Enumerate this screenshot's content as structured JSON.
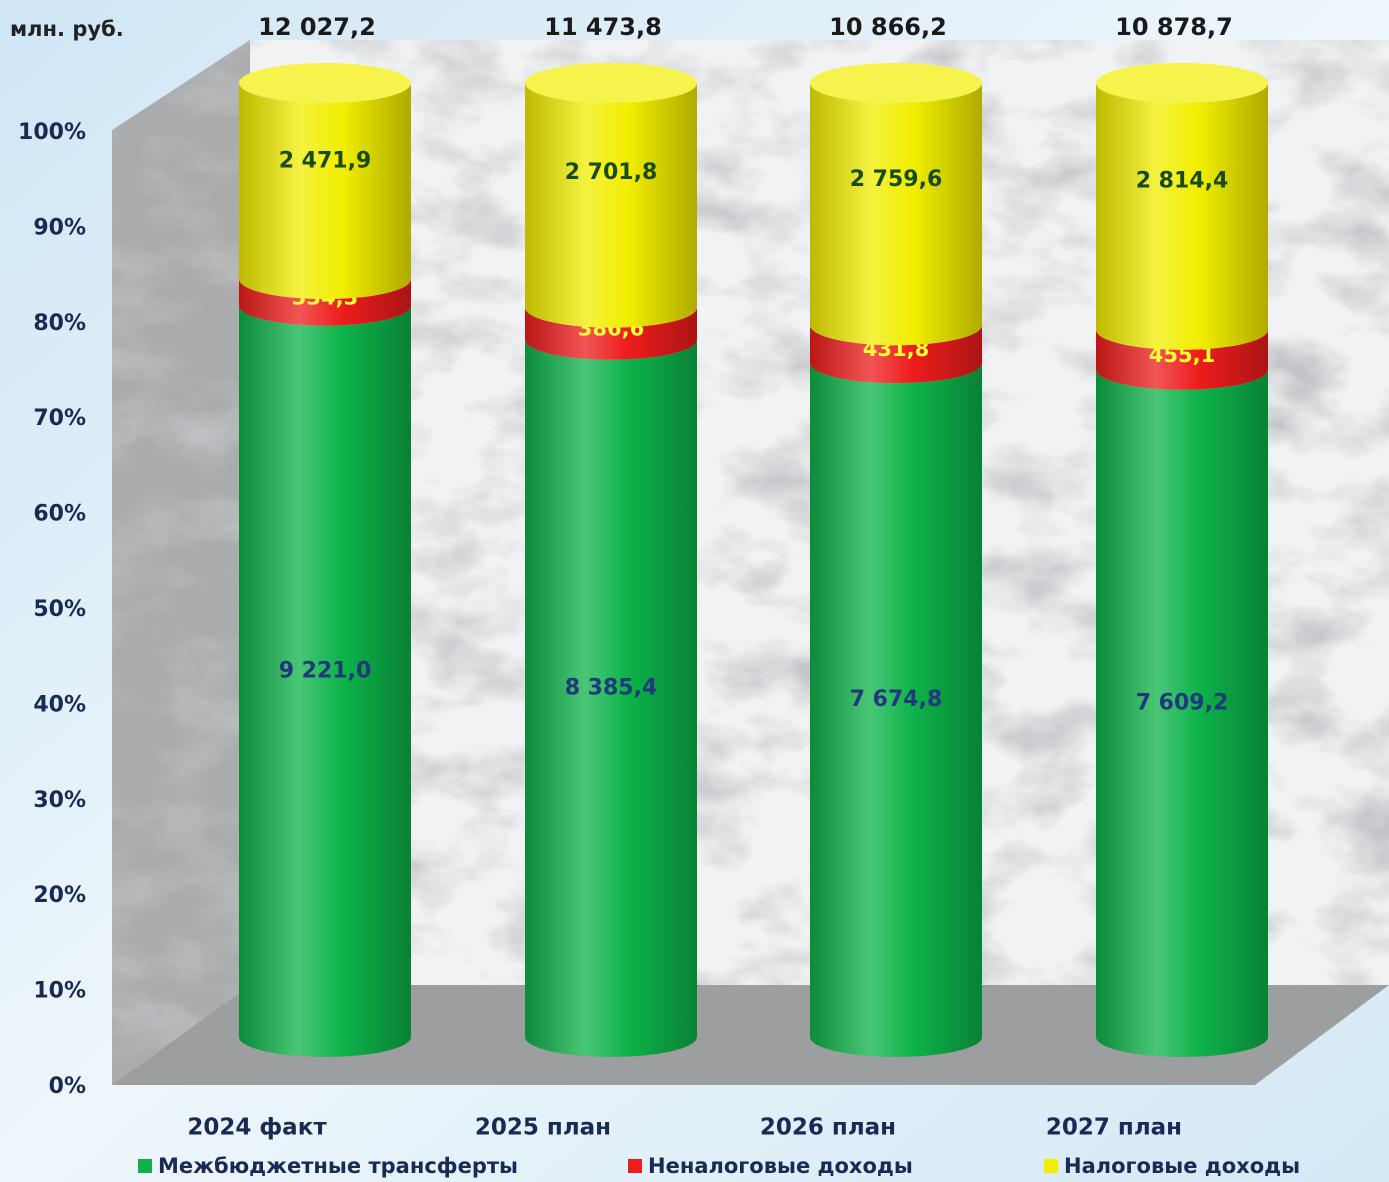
{
  "chart_data": {
    "type": "bar",
    "stacked": "percent",
    "unit_label": "млн. руб.",
    "categories": [
      "2024 факт",
      "2025 план",
      "2026 план",
      "2027 план"
    ],
    "totals": [
      12027.2,
      11473.8,
      10866.2,
      10878.7
    ],
    "total_labels": [
      "12 027,2",
      "11 473,8",
      "10 866,2",
      "10 878,7"
    ],
    "series": [
      {
        "name": "Межбюджетные трансферты",
        "color": "#0db34a",
        "values": [
          9221.0,
          8385.4,
          7674.8,
          7609.2
        ],
        "value_labels": [
          "9 221,0",
          "8 385,4",
          "7 674,8",
          "7 609,2"
        ]
      },
      {
        "name": "Неналоговые доходы",
        "color": "#ee1c1c",
        "values": [
          334.3,
          386.6,
          431.8,
          455.1
        ],
        "value_labels": [
          "334,3",
          "386,6",
          "431,8",
          "455,1"
        ]
      },
      {
        "name": "Налоговые доходы",
        "color": "#f2ee00",
        "values": [
          2471.9,
          2701.8,
          2759.6,
          2814.4
        ],
        "value_labels": [
          "2 471,9",
          "2 701,8",
          "2 759,6",
          "2 814,4"
        ]
      }
    ],
    "ylim": [
      0,
      100
    ],
    "yticks": [
      {
        "value": 0,
        "label": "0%"
      },
      {
        "value": 10,
        "label": "10%"
      },
      {
        "value": 20,
        "label": "20%"
      },
      {
        "value": 30,
        "label": "30%"
      },
      {
        "value": 40,
        "label": "40%"
      },
      {
        "value": 50,
        "label": "50%"
      },
      {
        "value": 60,
        "label": "60%"
      },
      {
        "value": 70,
        "label": "70%"
      },
      {
        "value": 80,
        "label": "80%"
      },
      {
        "value": 90,
        "label": "90%"
      },
      {
        "value": 100,
        "label": "100%"
      }
    ]
  }
}
